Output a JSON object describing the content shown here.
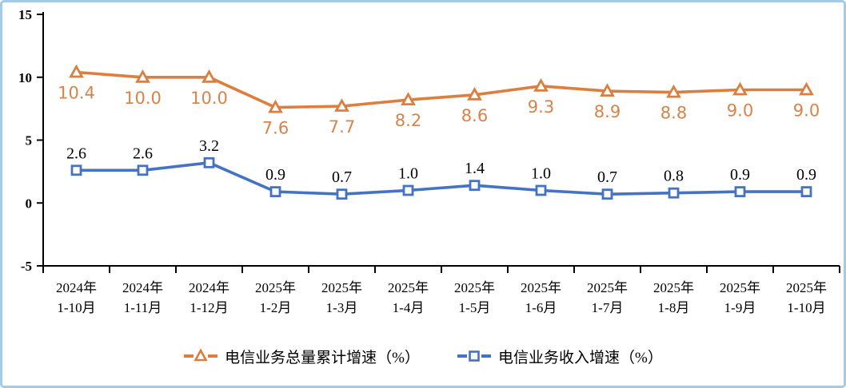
{
  "chart_data": {
    "type": "line",
    "categories": [
      [
        "2024年",
        "1-10月"
      ],
      [
        "2024年",
        "1-11月"
      ],
      [
        "2024年",
        "1-12月"
      ],
      [
        "2025年",
        "1-2月"
      ],
      [
        "2025年",
        "1-3月"
      ],
      [
        "2025年",
        "1-4月"
      ],
      [
        "2025年",
        "1-5月"
      ],
      [
        "2025年",
        "1-6月"
      ],
      [
        "2025年",
        "1-7月"
      ],
      [
        "2025年",
        "1-8月"
      ],
      [
        "2025年",
        "1-9月"
      ],
      [
        "2025年",
        "1-10月"
      ]
    ],
    "series": [
      {
        "name": "电信业务总量累计增速（%）",
        "values": [
          10.4,
          10.0,
          10.0,
          7.6,
          7.7,
          8.2,
          8.6,
          9.3,
          8.9,
          8.8,
          9.0,
          9.0
        ],
        "color": "#DC7E3E",
        "label_color": "#D9824A",
        "marker": "triangle",
        "label_position": "below",
        "label_decimals": 1
      },
      {
        "name": "电信业务收入增速（%）",
        "values": [
          2.6,
          2.6,
          3.2,
          0.9,
          0.7,
          1.0,
          1.4,
          1.0,
          0.7,
          0.8,
          0.9,
          0.9
        ],
        "color": "#4472C4",
        "label_color": "#000000",
        "marker": "square",
        "label_position": "above",
        "label_decimals": 1
      }
    ],
    "title": "",
    "xlabel": "",
    "ylabel": "",
    "ylim": [
      -5,
      15
    ],
    "yticks": [
      15,
      10,
      5,
      0,
      -5
    ],
    "grid": false,
    "legend_position": "bottom"
  },
  "colors": {
    "frame_border": "#a3cbe8",
    "axis": "#000000",
    "background": "#ffffff"
  }
}
